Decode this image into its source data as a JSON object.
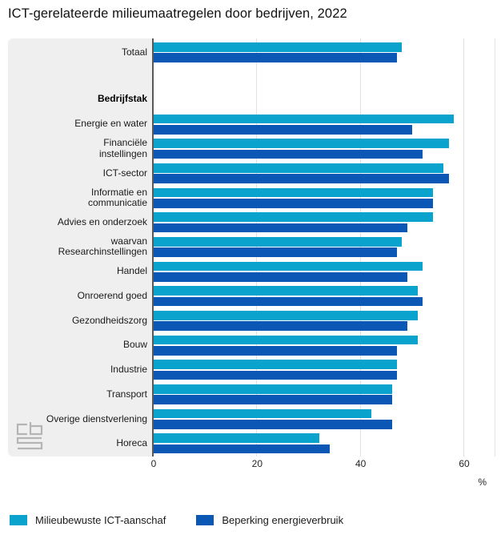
{
  "title": "ICT-gerelateerde milieumaatregelen door bedrijven, 2022",
  "chart_data": {
    "type": "bar",
    "orientation": "horizontal",
    "title": "ICT-gerelateerde milieumaatregelen door bedrijven, 2022",
    "unit": "%",
    "xlim": [
      0,
      66
    ],
    "x_ticks": [
      0,
      20,
      40,
      60
    ],
    "grid": "vertical",
    "legend_position": "bottom",
    "group_header": "Bedrijfstak",
    "series": [
      {
        "name": "Milieubewuste ICT-aanschaf",
        "color": "#09a3cd"
      },
      {
        "name": "Beperking energieverbruik",
        "color": "#0b57b5"
      }
    ],
    "total_row": {
      "label_lines": [
        "Totaal"
      ],
      "values": [
        48,
        47
      ]
    },
    "categories": [
      {
        "label_lines": [
          "Energie en water"
        ],
        "values": [
          58,
          50
        ]
      },
      {
        "label_lines": [
          "Financiële",
          "instellingen"
        ],
        "values": [
          57,
          52
        ]
      },
      {
        "label_lines": [
          "ICT-sector"
        ],
        "values": [
          56,
          57
        ]
      },
      {
        "label_lines": [
          "Informatie en",
          "communicatie"
        ],
        "values": [
          54,
          54
        ]
      },
      {
        "label_lines": [
          "Advies en onderzoek"
        ],
        "values": [
          54,
          49
        ]
      },
      {
        "label_lines": [
          "waarvan",
          "Researchinstellingen"
        ],
        "values": [
          48,
          47
        ]
      },
      {
        "label_lines": [
          "Handel"
        ],
        "values": [
          52,
          49
        ]
      },
      {
        "label_lines": [
          "Onroerend goed"
        ],
        "values": [
          51,
          52
        ]
      },
      {
        "label_lines": [
          "Gezondheidszorg"
        ],
        "values": [
          51,
          49
        ]
      },
      {
        "label_lines": [
          "Bouw"
        ],
        "values": [
          51,
          47
        ]
      },
      {
        "label_lines": [
          "Industrie"
        ],
        "values": [
          47,
          47
        ]
      },
      {
        "label_lines": [
          "Transport"
        ],
        "values": [
          46,
          46
        ]
      },
      {
        "label_lines": [
          "Overige dienstverlening"
        ],
        "values": [
          42,
          46
        ]
      },
      {
        "label_lines": [
          "Horeca"
        ],
        "values": [
          32,
          34
        ]
      }
    ]
  },
  "colors": {
    "series_light": "#09a3cd",
    "series_dark": "#0b57b5",
    "label_panel": "#efefef",
    "gridline": "#e1e1e1",
    "zero_axis": "#58585a"
  },
  "logo_name": "cbs-logo"
}
